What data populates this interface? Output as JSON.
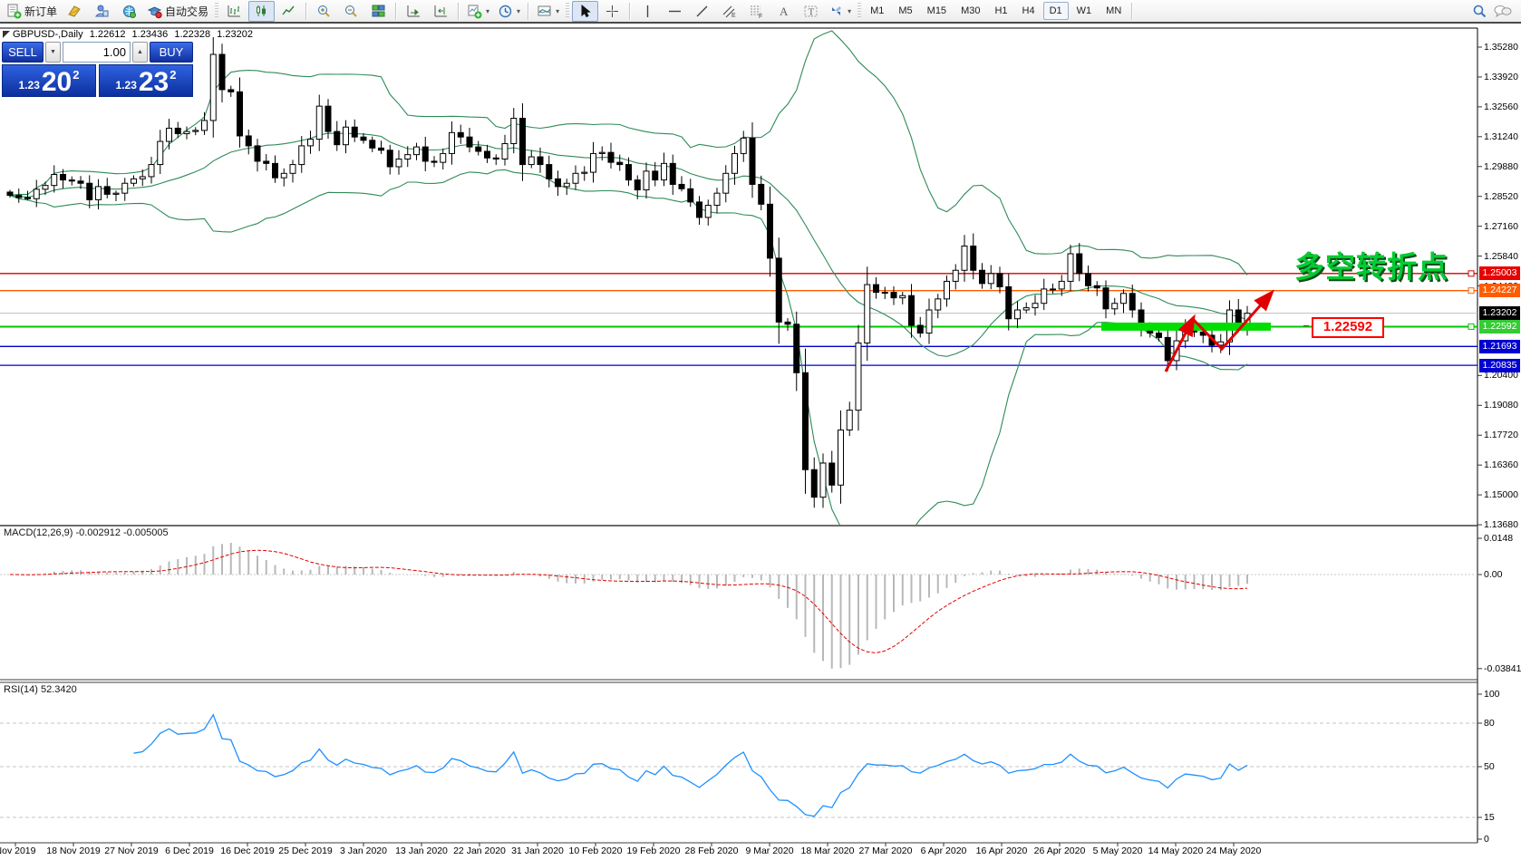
{
  "toolbar": {
    "new_order_label": "新订单",
    "autotrading_label": "自动交易",
    "timeframes": [
      "M1",
      "M5",
      "M15",
      "M30",
      "H1",
      "H4",
      "D1",
      "W1",
      "MN"
    ],
    "active_timeframe": "D1",
    "icon_names": [
      "new-order-icon",
      "metaeditor-icon",
      "community-icon",
      "signals-icon",
      "autotrading-icon",
      "bar-chart-icon",
      "candlestick-icon",
      "line-chart-icon",
      "zoom-in-icon",
      "zoom-out-icon",
      "tile-windows-icon",
      "auto-scroll-icon",
      "chart-shift-icon",
      "indicators-icon",
      "periods-icon",
      "templates-icon",
      "cursor-icon",
      "crosshair-icon",
      "vertical-line-icon",
      "horizontal-line-icon",
      "trendline-icon",
      "channel-icon",
      "fibonacci-icon",
      "text-icon",
      "text-label-icon",
      "arrows-icon",
      "search-icon",
      "chat-icon"
    ]
  },
  "chart_header": {
    "symbol_title": "GBPUSD-,Daily",
    "open": "1.22612",
    "high": "1.23436",
    "low": "1.22328",
    "close": "1.23202"
  },
  "one_click": {
    "sell_label": "SELL",
    "buy_label": "BUY",
    "volume": "1.00",
    "sell_price_small": "1.23",
    "sell_price_big": "20",
    "sell_price_sup": "2",
    "buy_price_small": "1.23",
    "buy_price_big": "23",
    "buy_price_sup": "2"
  },
  "price_axis": {
    "ticks": [
      {
        "label": "1.35280",
        "slot": 0
      },
      {
        "label": "1.33920",
        "slot": 1
      },
      {
        "label": "1.32560",
        "slot": 2
      },
      {
        "label": "1.31240",
        "slot": 3
      },
      {
        "label": "1.29880",
        "slot": 4
      },
      {
        "label": "1.28520",
        "slot": 5
      },
      {
        "label": "1.27160",
        "slot": 6
      },
      {
        "label": "1.25840",
        "slot": 7
      },
      {
        "label": "1.24480",
        "slot": 8
      },
      {
        "label": "1.20400",
        "slot": 11
      },
      {
        "label": "1.19080",
        "slot": 12
      },
      {
        "label": "1.17720",
        "slot": 13
      },
      {
        "label": "1.16360",
        "slot": 14
      },
      {
        "label": "1.15000",
        "slot": 15
      },
      {
        "label": "1.13680",
        "slot": 16
      }
    ],
    "badges": [
      {
        "label": "1.25003",
        "price": 1.25003,
        "color": "#e80000"
      },
      {
        "label": "1.24227",
        "price": 1.24227,
        "color": "#ff5c00"
      },
      {
        "label": "1.23202",
        "price": 1.23202,
        "color": "#000000"
      },
      {
        "label": "1.22592",
        "price": 1.22592,
        "color": "#33cc33"
      },
      {
        "label": "1.21693",
        "price": 1.21693,
        "color": "#0000d0"
      },
      {
        "label": "1.20835",
        "price": 1.20835,
        "color": "#0000d0"
      }
    ]
  },
  "macd_panel": {
    "label": "MACD(12,26,9) -0.002912 -0.005005",
    "axis": [
      {
        "label": "0.0148",
        "v": 0.0148
      },
      {
        "label": "0.00",
        "v": 0
      },
      {
        "label": "-0.038415",
        "v": -0.038415
      }
    ]
  },
  "rsi_panel": {
    "label": "RSI(14) 52.3420",
    "axis": [
      {
        "label": "100",
        "v": 100
      },
      {
        "label": "80",
        "v": 80
      },
      {
        "label": "50",
        "v": 50
      },
      {
        "label": "15",
        "v": 15
      },
      {
        "label": "0",
        "v": 0
      }
    ],
    "levels": [
      80,
      50,
      15
    ]
  },
  "date_axis": [
    "Nov 2019",
    "18 Nov 2019",
    "27 Nov 2019",
    "6 Dec 2019",
    "16 Dec 2019",
    "25 Dec 2019",
    "3 Jan 2020",
    "13 Jan 2020",
    "22 Jan 2020",
    "31 Jan 2020",
    "10 Feb 2020",
    "19 Feb 2020",
    "28 Feb 2020",
    "9 Mar 2020",
    "18 Mar 2020",
    "27 Mar 2020",
    "6 Apr 2020",
    "16 Apr 2020",
    "26 Apr 2020",
    "5 May 2020",
    "14 May 2020",
    "24 May 2020"
  ],
  "annotations": {
    "turning_point": "多空转折点",
    "level_box": "1.22592",
    "support_band": {
      "price": 1.22592,
      "color": "#00dd00"
    },
    "trend_arrow": {
      "color": "#e00000",
      "shape": "zigzag-up"
    }
  },
  "chart_data": {
    "type": "candlestick",
    "symbol": "GBPUSD",
    "period": "Daily",
    "ohlc_display": [
      1.22612,
      1.23436,
      1.22328,
      1.23202
    ],
    "y_range": [
      1.1368,
      1.3528
    ],
    "closes": [
      1.2855,
      1.2845,
      1.284,
      1.2883,
      1.29,
      1.295,
      1.2925,
      1.292,
      1.291,
      1.2835,
      1.2895,
      1.286,
      1.2865,
      1.291,
      1.293,
      1.294,
      1.2995,
      1.31,
      1.316,
      1.3135,
      1.3145,
      1.315,
      1.3195,
      1.3495,
      1.3335,
      1.3325,
      1.3125,
      1.308,
      1.301,
      1.3,
      1.2935,
      1.2955,
      1.2995,
      1.308,
      1.311,
      1.326,
      1.3145,
      1.3085,
      1.3165,
      1.312,
      1.3105,
      1.307,
      1.306,
      1.2985,
      1.302,
      1.304,
      1.3075,
      1.301,
      1.3005,
      1.3045,
      1.314,
      1.312,
      1.3075,
      1.3055,
      1.3025,
      1.302,
      1.309,
      1.3205,
      1.2995,
      1.303,
      1.2995,
      1.293,
      1.2895,
      1.291,
      1.2955,
      1.296,
      1.3045,
      1.305,
      1.3005,
      1.2995,
      1.2925,
      1.288,
      1.2965,
      1.2925,
      1.3,
      1.2905,
      1.2885,
      1.2825,
      1.2755,
      1.281,
      1.2865,
      1.2955,
      1.3045,
      1.3115,
      1.2905,
      1.2815,
      1.257,
      1.228,
      1.227,
      1.205,
      1.161,
      1.1485,
      1.164,
      1.154,
      1.179,
      1.188,
      1.2185,
      1.245,
      1.2415,
      1.2415,
      1.239,
      1.24,
      1.2265,
      1.223,
      1.2335,
      1.2385,
      1.2465,
      1.2515,
      1.2625,
      1.2515,
      1.2455,
      1.25,
      1.244,
      1.2295,
      1.2335,
      1.2345,
      1.2365,
      1.243,
      1.243,
      1.2465,
      1.259,
      1.25,
      1.2445,
      1.2435,
      1.234,
      1.2365,
      1.241,
      1.2335,
      1.226,
      1.223,
      1.221,
      1.2105,
      1.2195,
      1.225,
      1.2235,
      1.222,
      1.2175,
      1.219,
      1.2335,
      1.226,
      1.232
    ],
    "indicators": {
      "bollinger": {
        "period": 20,
        "deviation": 2,
        "color": "#2e8b57"
      },
      "macd": {
        "fast": 12,
        "slow": 26,
        "signal": 9,
        "current_macd": -0.002912,
        "current_signal": -0.005005,
        "histogram_color": "#b8b8b8",
        "signal_color": "#e00000"
      },
      "rsi": {
        "period": 14,
        "current": 52.342,
        "color": "#1e90ff"
      }
    },
    "h_lines": [
      {
        "price": 1.25003,
        "color": "#d40000",
        "width": 1.3
      },
      {
        "price": 1.24227,
        "color": "#ff5c00",
        "width": 1.3
      },
      {
        "price": 1.23202,
        "color": "#c0c0c0",
        "width": 1,
        "role": "current-price"
      },
      {
        "price": 1.22592,
        "color": "#00c800",
        "width": 2
      },
      {
        "price": 1.21693,
        "color": "#0000c8",
        "width": 1.3
      },
      {
        "price": 1.20835,
        "color": "#0000c8",
        "width": 1.3
      }
    ]
  }
}
